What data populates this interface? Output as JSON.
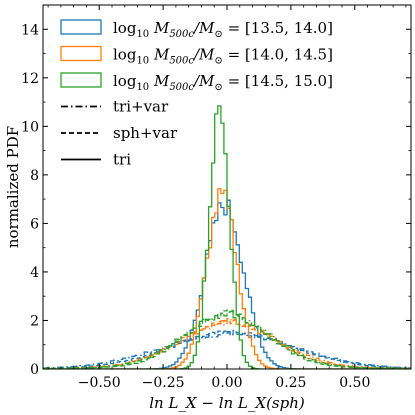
{
  "chart_data": {
    "type": "line",
    "subtype": "step-histogram",
    "xlabel": "ln L_X − ln L_X(sph)",
    "ylabel": "normalized PDF",
    "xlim": [
      -0.72,
      0.72
    ],
    "ylim": [
      0,
      15
    ],
    "xticks": [
      -0.5,
      -0.25,
      0.0,
      0.25,
      0.5
    ],
    "xtick_labels": [
      "−0.50",
      "−0.25",
      "0.00",
      "0.25",
      "0.50"
    ],
    "yticks": [
      0,
      2,
      4,
      6,
      8,
      10,
      12,
      14
    ],
    "ytick_labels": [
      "0",
      "2",
      "4",
      "6",
      "8",
      "10",
      "12",
      "14"
    ],
    "grid": false,
    "legend_position": "top-left",
    "legend": [
      {
        "kind": "mass",
        "color": "#1f77b4",
        "prefix": "log",
        "sub": "10",
        "mid": " M",
        "sub2": "500c",
        "rest": "/M",
        "sun": "⊙",
        "range": " = [13.5, 14.0]"
      },
      {
        "kind": "mass",
        "color": "#ff7f0e",
        "prefix": "log",
        "sub": "10",
        "mid": " M",
        "sub2": "500c",
        "rest": "/M",
        "sun": "⊙",
        "range": " = [14.0, 14.5]"
      },
      {
        "kind": "mass",
        "color": "#2ca02c",
        "prefix": "log",
        "sub": "10",
        "mid": " M",
        "sub2": "500c",
        "rest": "/M",
        "sun": "⊙",
        "range": " = [14.5, 15.0]"
      },
      {
        "kind": "style",
        "dash": "dashdot",
        "label": "tri+var"
      },
      {
        "kind": "style",
        "dash": "dashed",
        "label": "sph+var"
      },
      {
        "kind": "style",
        "dash": "solid",
        "label": "tri"
      }
    ],
    "colors": {
      "blue": "#1f77b4",
      "orange": "#ff7f0e",
      "green": "#2ca02c"
    },
    "series": [
      {
        "color": "#1f77b4",
        "linestyle": "dashdot",
        "peak": 1.45,
        "center": 0.01,
        "width": 0.26,
        "tail": 0.05
      },
      {
        "color": "#1f77b4",
        "linestyle": "dashed",
        "peak": 1.5,
        "center": 0.02,
        "width": 0.24,
        "tail": 0.04
      },
      {
        "color": "#1f77b4",
        "linestyle": "solid",
        "peak": 6.75,
        "center": -0.01,
        "width": 0.075,
        "tail": 0.0
      },
      {
        "color": "#ff7f0e",
        "linestyle": "dashdot",
        "peak": 1.95,
        "center": 0.01,
        "width": 0.19,
        "tail": 0.12
      },
      {
        "color": "#ff7f0e",
        "linestyle": "dashed",
        "peak": 2.0,
        "center": 0.0,
        "width": 0.18,
        "tail": 0.11
      },
      {
        "color": "#ff7f0e",
        "linestyle": "solid",
        "peak": 7.1,
        "center": -0.02,
        "width": 0.06,
        "tail": 0.0
      },
      {
        "color": "#2ca02c",
        "linestyle": "dashdot",
        "peak": 2.3,
        "center": 0.0,
        "width": 0.17,
        "tail": 0.13
      },
      {
        "color": "#2ca02c",
        "linestyle": "dashed",
        "peak": 2.3,
        "center": 0.0,
        "width": 0.16,
        "tail": 0.12
      },
      {
        "color": "#2ca02c",
        "linestyle": "solid",
        "peak": 10.6,
        "center": -0.03,
        "width": 0.04,
        "tail": 0.0
      }
    ]
  }
}
